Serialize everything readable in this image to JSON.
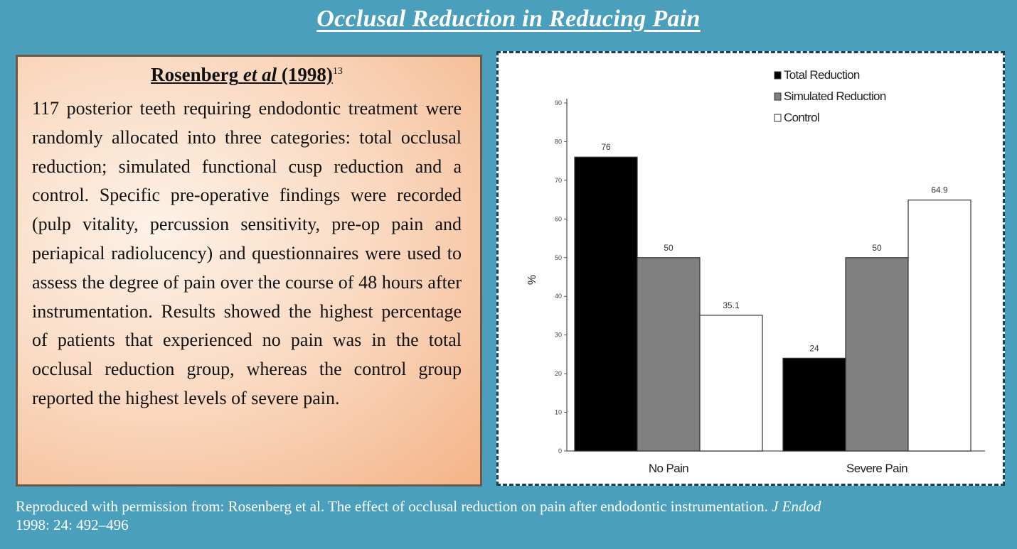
{
  "slide": {
    "title": "Occlusal Reduction in Reducing Pain"
  },
  "study": {
    "heading_author": "Rosenberg",
    "heading_etal": "et al",
    "heading_year": "(1998)",
    "heading_ref": "13",
    "body": "117 posterior teeth requiring endodontic treatment were randomly allocated into three categories: total occlusal reduction; simulated functional cusp reduction and a control. Specific pre-operative findings were recorded (pulp vitality, percussion sensitivity, pre-op pain and periapical radiolucency) and questionnaires were used to assess the degree of pain over the course of 48 hours after instrumentation. Results showed the highest percentage of patients that experienced no pain was in the total occlusal reduction group, whereas the control group reported the highest levels of severe pain."
  },
  "citation": {
    "text": "Reproduced with permission from: Rosenberg et al. The effect of occlusal reduction on pain after endodontic instrumentation.",
    "journal": "J Endod",
    "details": "1998: 24: 492–496"
  },
  "colors": {
    "background": "#4aa0bc",
    "total": "#000000",
    "simulated": "#808080",
    "control": "#ffffff"
  },
  "chart_data": {
    "type": "bar",
    "categories": [
      "No Pain",
      "Severe Pain"
    ],
    "series": [
      {
        "name": "Total Reduction",
        "values": [
          76,
          24
        ],
        "color": "#000000"
      },
      {
        "name": "Simulated Reduction",
        "values": [
          50,
          50
        ],
        "color": "#808080"
      },
      {
        "name": "Control",
        "values": [
          35.1,
          64.9
        ],
        "color": "#ffffff"
      }
    ],
    "data_labels": [
      [
        "76",
        "24"
      ],
      [
        "50",
        "50"
      ],
      [
        "35.1",
        "64.9"
      ]
    ],
    "ylabel": "%",
    "ylim": [
      0,
      90
    ],
    "yticks": [
      0,
      10,
      20,
      30,
      40,
      50,
      60,
      70,
      80,
      90
    ],
    "legend": "top-right",
    "grid": false
  }
}
